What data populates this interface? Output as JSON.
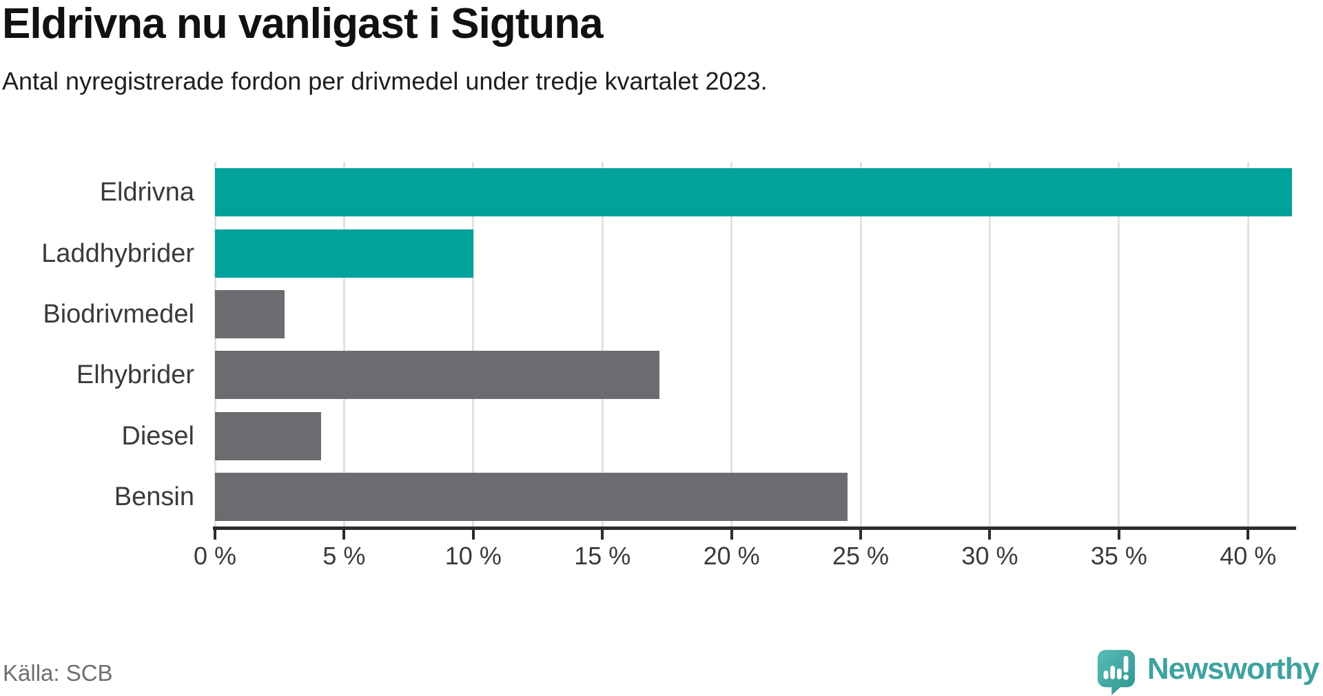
{
  "header": {
    "title": "Eldrivna nu vanligast i Sigtuna",
    "subtitle": "Antal nyregistrerade fordon per drivmedel under tredje kvartalet 2023."
  },
  "chart_data": {
    "type": "bar",
    "orientation": "horizontal",
    "title": "Eldrivna nu vanligast i Sigtuna",
    "subtitle": "Antal nyregistrerade fordon per drivmedel under tredje kvartalet 2023.",
    "categories": [
      "Eldrivna",
      "Laddhybrider",
      "Biodrivmedel",
      "Elhybrider",
      "Diesel",
      "Bensin"
    ],
    "values": [
      41.7,
      10.0,
      2.7,
      17.2,
      4.1,
      24.5
    ],
    "unit": "%",
    "bar_colors": [
      "#00A29A",
      "#00A29A",
      "#6C6C70",
      "#6C6C70",
      "#6C6C70",
      "#6C6C70"
    ],
    "highlight_color": "#00A29A",
    "default_color": "#6C6C70",
    "xlim": [
      0,
      41.78
    ],
    "x_ticks": [
      0,
      5,
      10,
      15,
      20,
      25,
      30,
      35,
      40
    ],
    "x_tick_labels": [
      "0 %",
      "5 %",
      "10 %",
      "15 %",
      "20 %",
      "25 %",
      "30 %",
      "35 %",
      "40 %"
    ],
    "grid": "vertical",
    "gridline_color": "#e1e1e1",
    "axis_color": "#2d2d2d",
    "legend": "none"
  },
  "footer": {
    "source": "Källa: SCB",
    "brand": "Newsworthy"
  }
}
